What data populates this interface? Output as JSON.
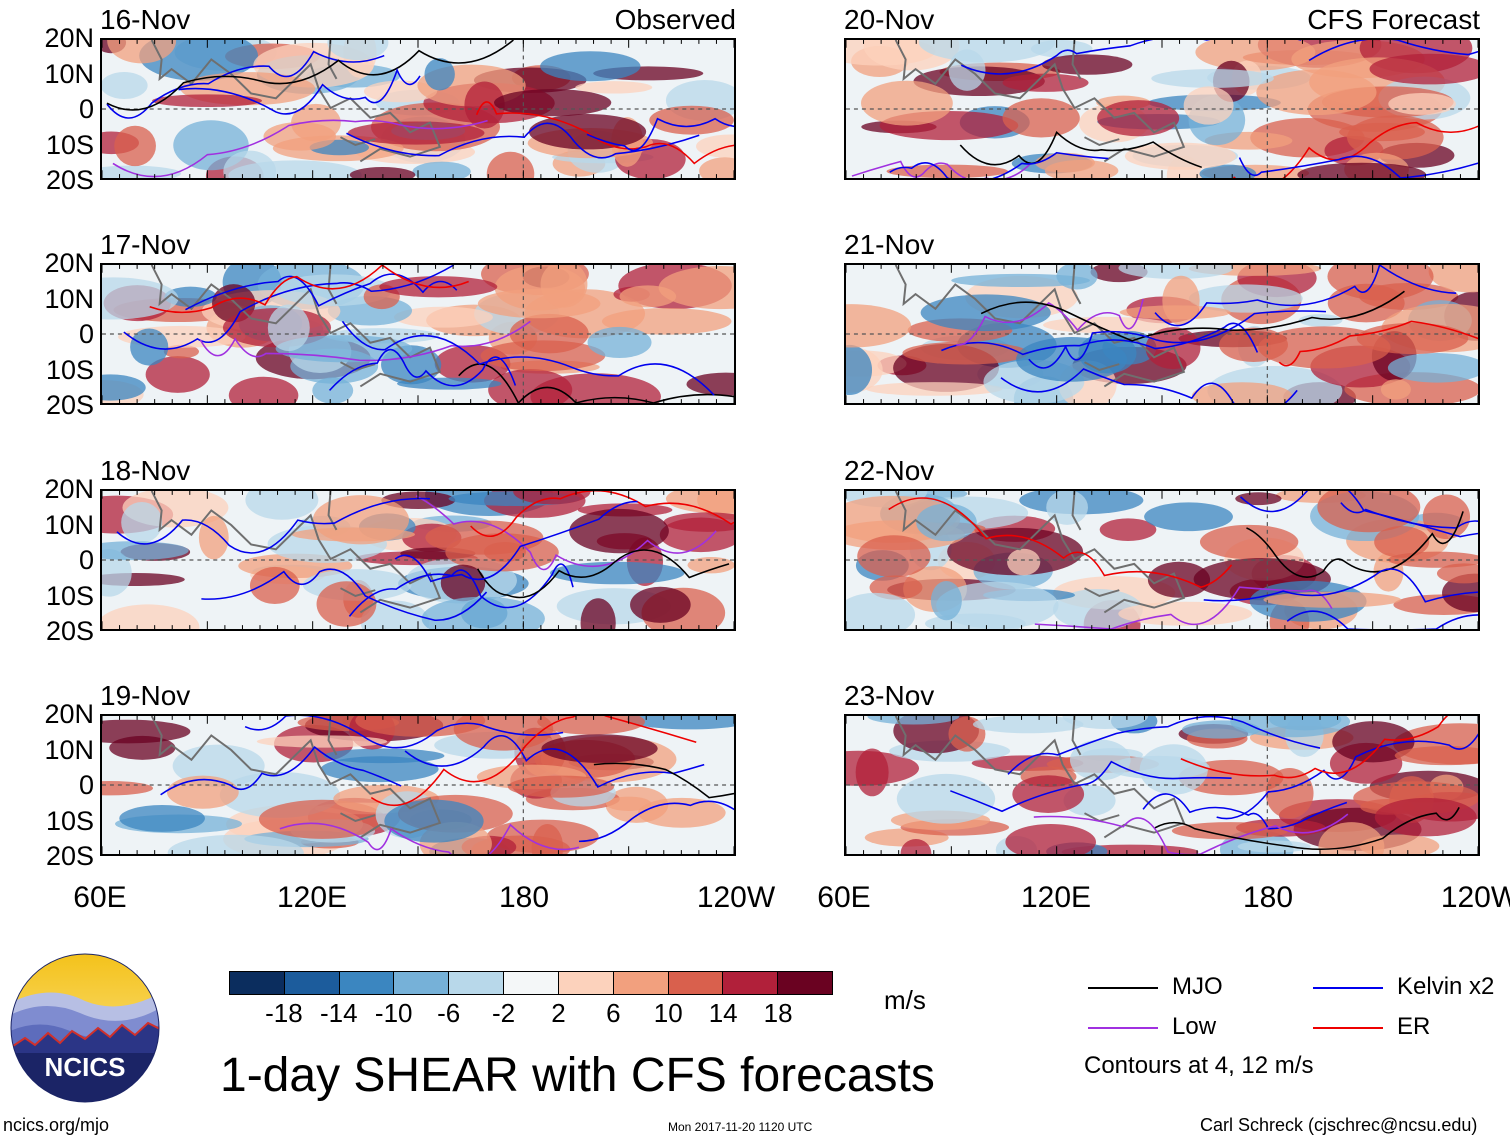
{
  "panels_left": [
    {
      "date": "16-Nov",
      "tag": "Observed"
    },
    {
      "date": "17-Nov",
      "tag": ""
    },
    {
      "date": "18-Nov",
      "tag": ""
    },
    {
      "date": "19-Nov",
      "tag": ""
    }
  ],
  "panels_right": [
    {
      "date": "20-Nov",
      "tag": "CFS Forecast"
    },
    {
      "date": "21-Nov",
      "tag": ""
    },
    {
      "date": "22-Nov",
      "tag": ""
    },
    {
      "date": "23-Nov",
      "tag": ""
    }
  ],
  "lat_labels": [
    "20N",
    "10N",
    "0",
    "10S",
    "20S"
  ],
  "lon_labels": [
    "60E",
    "120E",
    "180",
    "120W"
  ],
  "colorbar": {
    "ticks": [
      "-18",
      "-14",
      "-10",
      "-6",
      "-2",
      "2",
      "6",
      "10",
      "14",
      "18"
    ],
    "colors": [
      "#0b2d5e",
      "#1c5c9c",
      "#3b86c0",
      "#76b1d8",
      "#b8d8ea",
      "#f4f7f8",
      "#fcd2bc",
      "#f2a07e",
      "#d9604d",
      "#b1203a",
      "#6a0221"
    ],
    "unit": "m/s"
  },
  "legend": {
    "items": [
      {
        "label": "MJO",
        "color": "#000000"
      },
      {
        "label": "Kelvin x2",
        "color": "#0000ee"
      },
      {
        "label": "Low",
        "color": "#a030e0"
      },
      {
        "label": "ER",
        "color": "#ee0000"
      }
    ],
    "note": "Contours at 4, 12 m/s"
  },
  "title": "1-day SHEAR with CFS forecasts",
  "logo_text": "NCICS",
  "footer_left": "ncics.org/mjo",
  "footer_center": "Mon 2017-11-20 1120 UTC",
  "footer_right": "Carl Schreck (cjschrec@ncsu.edu)"
}
